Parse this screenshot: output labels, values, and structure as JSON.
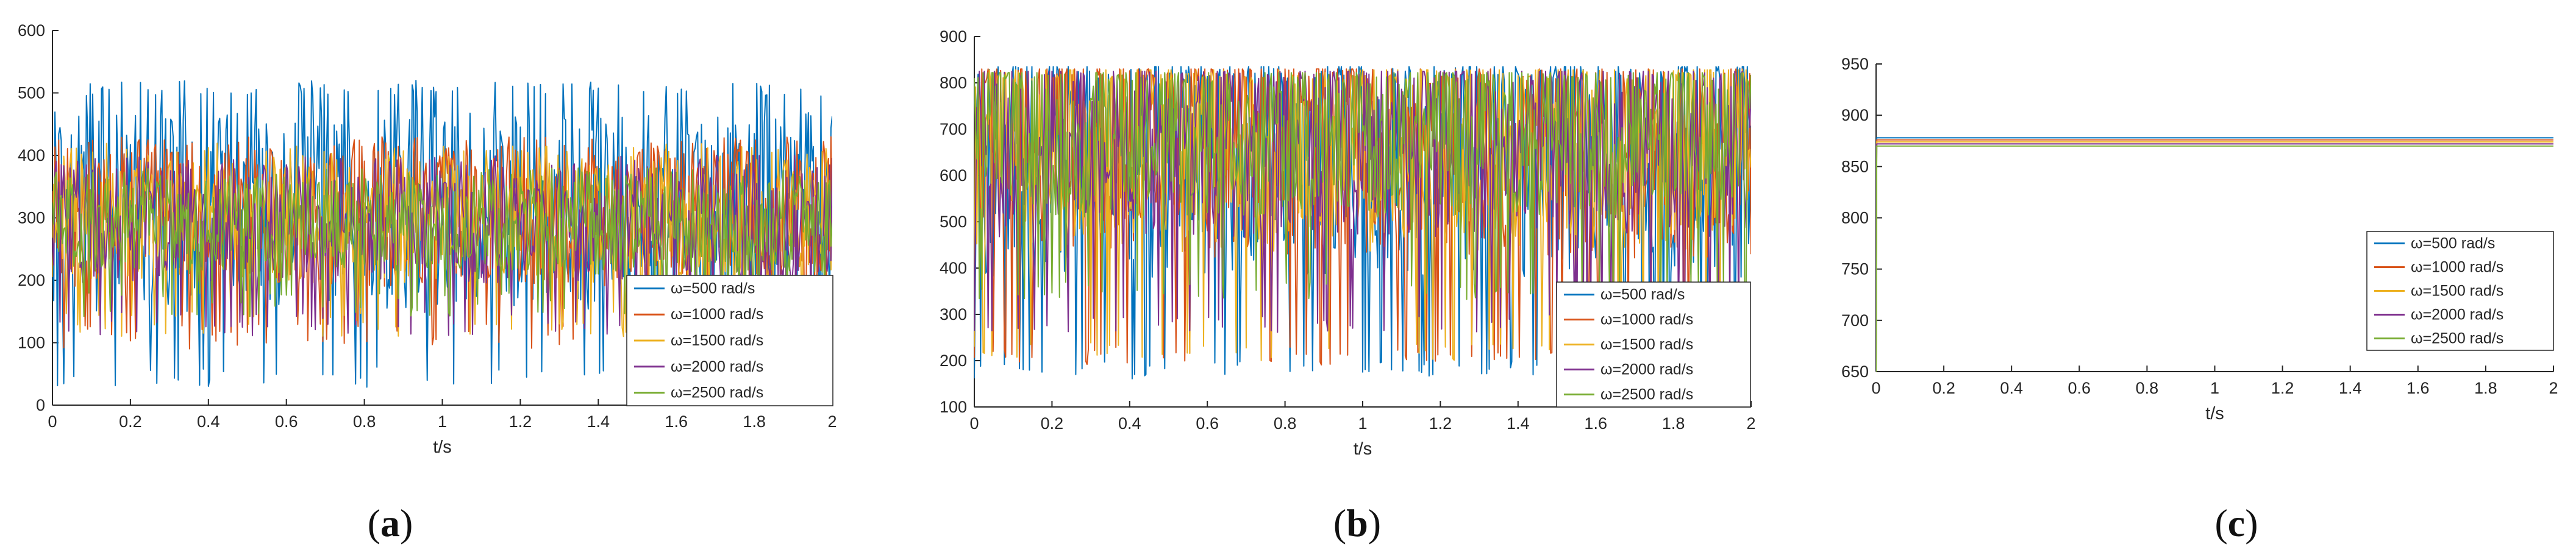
{
  "panels": [
    {
      "caption": {
        "open": "(",
        "letter": "a",
        "close": ")"
      },
      "chart_data": {
        "type": "line",
        "xlabel": "t/s",
        "ylabel": "",
        "xlim": [
          0,
          2
        ],
        "ylim": [
          0,
          600
        ],
        "x_ticks": [
          "0",
          "0.2",
          "0.4",
          "0.6",
          "0.8",
          "1",
          "1.2",
          "1.4",
          "1.6",
          "1.8",
          "2"
        ],
        "y_ticks": [
          "0",
          "100",
          "200",
          "300",
          "400",
          "500",
          "600"
        ],
        "legend_position": "lower-right",
        "series": [
          {
            "name": "ω=500 rad/s",
            "color": "#0072BD",
            "mean": 310,
            "spread": 160,
            "min": 25,
            "max": 520
          },
          {
            "name": "ω=1000 rad/s",
            "color": "#D95319",
            "mean": 300,
            "spread": 110,
            "min": 90,
            "max": 430
          },
          {
            "name": "ω=1500 rad/s",
            "color": "#EDB120",
            "mean": 295,
            "spread": 100,
            "min": 110,
            "max": 420
          },
          {
            "name": "ω=2000 rad/s",
            "color": "#7E2F8E",
            "mean": 285,
            "spread": 90,
            "min": 110,
            "max": 400
          },
          {
            "name": "ω=2500 rad/s",
            "color": "#77AC30",
            "mean": 285,
            "spread": 75,
            "min": 140,
            "max": 380
          }
        ]
      }
    },
    {
      "caption": {
        "open": "(",
        "letter": "b",
        "close": ")"
      },
      "chart_data": {
        "type": "line",
        "xlabel": "t/s",
        "ylabel": "",
        "xlim": [
          0,
          2
        ],
        "ylim": [
          100,
          900
        ],
        "x_ticks": [
          "0",
          "0.2",
          "0.4",
          "0.6",
          "0.8",
          "1",
          "1.2",
          "1.4",
          "1.6",
          "1.8",
          "2"
        ],
        "y_ticks": [
          "100",
          "200",
          "300",
          "400",
          "500",
          "600",
          "700",
          "800",
          "900"
        ],
        "legend_position": "lower-right",
        "series": [
          {
            "name": "ω=500 rad/s",
            "color": "#0072BD",
            "mean": 640,
            "spread": 260,
            "min": 160,
            "max": 835
          },
          {
            "name": "ω=1000 rad/s",
            "color": "#D95319",
            "mean": 650,
            "spread": 230,
            "min": 190,
            "max": 830
          },
          {
            "name": "ω=1500 rad/s",
            "color": "#EDB120",
            "mean": 655,
            "spread": 220,
            "min": 200,
            "max": 828
          },
          {
            "name": "ω=2000 rad/s",
            "color": "#7E2F8E",
            "mean": 665,
            "spread": 200,
            "min": 260,
            "max": 825
          },
          {
            "name": "ω=2500 rad/s",
            "color": "#77AC30",
            "mean": 680,
            "spread": 170,
            "min": 330,
            "max": 822
          }
        ]
      }
    },
    {
      "caption": {
        "open": "(",
        "letter": "c",
        "close": ")"
      },
      "chart_data": {
        "type": "line",
        "xlabel": "t/s",
        "ylabel": "",
        "xlim": [
          0,
          2
        ],
        "ylim": [
          650,
          950
        ],
        "x_ticks": [
          "0",
          "0.2",
          "0.4",
          "0.6",
          "0.8",
          "1",
          "1.2",
          "1.4",
          "1.6",
          "1.8",
          "2"
        ],
        "y_ticks": [
          "650",
          "700",
          "750",
          "800",
          "850",
          "900",
          "950"
        ],
        "legend_position": "lower-right",
        "series": [
          {
            "name": "ω=500 rad/s",
            "color": "#0072BD",
            "value": 878,
            "start": 650
          },
          {
            "name": "ω=1000 rad/s",
            "color": "#D95319",
            "value": 876,
            "start": 650
          },
          {
            "name": "ω=1500 rad/s",
            "color": "#EDB120",
            "value": 874,
            "start": 650
          },
          {
            "name": "ω=2000 rad/s",
            "color": "#7E2F8E",
            "value": 872,
            "start": 650
          },
          {
            "name": "ω=2500 rad/s",
            "color": "#77AC30",
            "value": 870,
            "start": 650
          }
        ]
      }
    }
  ]
}
